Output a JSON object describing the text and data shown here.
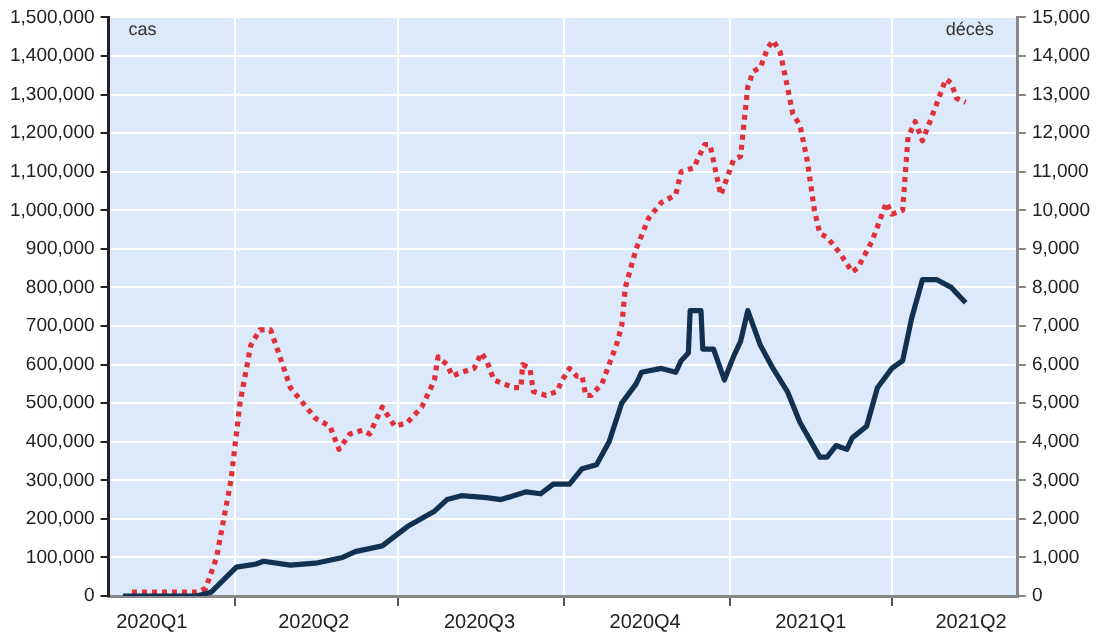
{
  "chart_data": {
    "type": "line",
    "ylabel": "cas",
    "y2label": "décès",
    "xlim": [
      "2020-01-22",
      "2021-06-10"
    ],
    "xticks": [
      {
        "value": "2020-02-15",
        "label": "2020Q1"
      },
      {
        "value": "2020-04-01",
        "label": null
      },
      {
        "value": "2020-05-15",
        "label": "2020Q2"
      },
      {
        "value": "2020-07-01",
        "label": null
      },
      {
        "value": "2020-08-15",
        "label": "2020Q3"
      },
      {
        "value": "2020-10-01",
        "label": null
      },
      {
        "value": "2020-11-15",
        "label": "2020Q4"
      },
      {
        "value": "2021-01-01",
        "label": null
      },
      {
        "value": "2021-02-15",
        "label": "2021Q1"
      },
      {
        "value": "2021-04-01",
        "label": null
      },
      {
        "value": "2021-05-15",
        "label": "2021Q2"
      }
    ],
    "ylim": [
      0,
      1500000
    ],
    "yticks": [
      0,
      {
        "value": 100000,
        "label": "100,000"
      },
      {
        "value": 200000,
        "label": "200,000"
      },
      {
        "value": 300000,
        "label": "300,000"
      },
      {
        "value": 400000,
        "label": "400,000"
      },
      {
        "value": 500000,
        "label": "500,000"
      },
      {
        "value": 600000,
        "label": "600,000"
      },
      {
        "value": 700000,
        "label": "700,000"
      },
      {
        "value": 800000,
        "label": "800,000"
      },
      {
        "value": 900000,
        "label": "900,000"
      },
      {
        "value": 1000000,
        "label": "1,000,000"
      },
      {
        "value": 1100000,
        "label": "1,100,000"
      },
      {
        "value": 1200000,
        "label": "1,200,000"
      },
      {
        "value": 1300000,
        "label": "1,300,000"
      },
      {
        "value": 1400000,
        "label": "1,400,000"
      },
      {
        "value": 1500000,
        "label": "1,500,000"
      }
    ],
    "y2lim": [
      0,
      15000
    ],
    "y2ticks": [
      0,
      {
        "value": 1000,
        "label": "1,000"
      },
      {
        "value": 2000,
        "label": "2,000"
      },
      {
        "value": 3000,
        "label": "3,000"
      },
      {
        "value": 4000,
        "label": "4,000"
      },
      {
        "value": 5000,
        "label": "5,000"
      },
      {
        "value": 6000,
        "label": "6,000"
      },
      {
        "value": 7000,
        "label": "7,000"
      },
      {
        "value": 8000,
        "label": "8,000"
      },
      {
        "value": 9000,
        "label": "9,000"
      },
      {
        "value": 10000,
        "label": "10,000"
      },
      {
        "value": 11000,
        "label": "11,000"
      },
      {
        "value": 12000,
        "label": "12,000"
      },
      {
        "value": 13000,
        "label": "13,000"
      },
      {
        "value": 14000,
        "label": "14,000"
      },
      {
        "value": 15000,
        "label": "15,000"
      }
    ],
    "grid": true,
    "legend": false,
    "marker": "none",
    "series": [
      {
        "color": "#12304f",
        "line_style": "solid",
        "x": [
          "2020-01-30",
          "2020-03-11",
          "2020-03-19",
          "2020-04-02",
          "2020-04-13",
          "2020-04-17",
          "2020-05-02",
          "2020-05-16",
          "2020-05-31",
          "2020-06-07",
          "2020-06-22",
          "2020-07-06",
          "2020-07-21",
          "2020-07-28",
          "2020-08-05",
          "2020-08-19",
          "2020-08-27",
          "2020-09-10",
          "2020-09-18",
          "2020-09-25",
          "2020-10-04",
          "2020-10-11",
          "2020-10-19",
          "2020-10-26",
          "2020-11-02",
          "2020-11-10",
          "2020-11-13",
          "2020-11-24",
          "2020-12-02",
          "2020-12-05",
          "2020-12-09",
          "2020-12-10",
          "2020-12-16",
          "2020-12-17",
          "2020-12-23",
          "2020-12-29",
          "2021-01-03",
          "2021-01-07",
          "2021-01-11",
          "2021-01-18",
          "2021-01-25",
          "2021-02-02",
          "2021-02-09",
          "2021-02-20",
          "2021-02-24",
          "2021-03-01",
          "2021-03-07",
          "2021-03-10",
          "2021-03-18",
          "2021-03-24",
          "2021-04-01",
          "2021-04-07",
          "2021-04-12",
          "2021-04-18",
          "2021-04-26",
          "2021-05-04",
          "2021-05-12"
        ],
        "values": [
          0,
          0,
          10000,
          75000,
          83000,
          90000,
          80000,
          85000,
          100000,
          115000,
          130000,
          180000,
          220000,
          250000,
          260000,
          255000,
          250000,
          270000,
          265000,
          290000,
          290000,
          330000,
          340000,
          400000,
          500000,
          550000,
          580000,
          590000,
          580000,
          610000,
          630000,
          740000,
          740000,
          640000,
          640000,
          560000,
          620000,
          660000,
          740000,
          650000,
          590000,
          530000,
          450000,
          360000,
          360000,
          390000,
          380000,
          410000,
          440000,
          540000,
          590000,
          610000,
          720000,
          820000,
          820000,
          800000,
          760000
        ]
      },
      {
        "color": "#e0303a",
        "line_style": "dotted",
        "axis": "y2",
        "x": [
          "2020-02-04",
          "2020-03-11",
          "2020-03-16",
          "2020-03-22",
          "2020-03-30",
          "2020-04-04",
          "2020-04-10",
          "2020-04-15",
          "2020-04-21",
          "2020-04-24",
          "2020-05-02",
          "2020-05-09",
          "2020-05-16",
          "2020-05-24",
          "2020-05-29",
          "2020-06-04",
          "2020-06-11",
          "2020-06-15",
          "2020-06-22",
          "2020-06-29",
          "2020-07-06",
          "2020-07-14",
          "2020-07-21",
          "2020-07-23",
          "2020-07-28",
          "2020-07-31",
          "2020-08-05",
          "2020-08-12",
          "2020-08-16",
          "2020-08-19",
          "2020-08-23",
          "2020-09-03",
          "2020-09-07",
          "2020-09-08",
          "2020-09-12",
          "2020-09-14",
          "2020-09-21",
          "2020-09-27",
          "2020-09-30",
          "2020-10-04",
          "2020-10-08",
          "2020-10-11",
          "2020-10-13",
          "2020-10-16",
          "2020-10-22",
          "2020-10-30",
          "2020-11-02",
          "2020-11-04",
          "2020-11-10",
          "2020-11-17",
          "2020-11-24",
          "2020-12-02",
          "2020-12-05",
          "2020-12-12",
          "2020-12-18",
          "2020-12-21",
          "2020-12-27",
          "2020-12-31",
          "2021-01-03",
          "2021-01-07",
          "2021-01-11",
          "2021-01-14",
          "2021-01-18",
          "2021-01-22",
          "2021-01-25",
          "2021-01-29",
          "2021-02-02",
          "2021-02-05",
          "2021-02-09",
          "2021-02-13",
          "2021-02-17",
          "2021-02-20",
          "2021-02-24",
          "2021-03-03",
          "2021-03-10",
          "2021-03-13",
          "2021-03-21",
          "2021-03-29",
          "2021-04-01",
          "2021-04-07",
          "2021-04-10",
          "2021-04-14",
          "2021-04-18",
          "2021-04-23",
          "2021-05-01",
          "2021-05-04",
          "2021-05-07",
          "2021-05-12"
        ],
        "values": [
          100,
          100,
          200,
          1000,
          3000,
          5000,
          6500,
          6900,
          6900,
          6500,
          5400,
          5000,
          4600,
          4400,
          3800,
          4200,
          4300,
          4200,
          4900,
          4400,
          4500,
          4900,
          5600,
          6200,
          6000,
          5700,
          5800,
          5900,
          6300,
          6100,
          5600,
          5400,
          5400,
          6000,
          5900,
          5300,
          5200,
          5300,
          5600,
          5900,
          5700,
          5700,
          5200,
          5200,
          5500,
          6500,
          7000,
          8000,
          9000,
          9800,
          10200,
          10400,
          11000,
          11100,
          11700,
          11700,
          10400,
          10900,
          11300,
          11400,
          13200,
          13600,
          13700,
          14200,
          14400,
          14100,
          13200,
          12500,
          12200,
          11300,
          10000,
          9400,
          9300,
          8900,
          8400,
          8500,
          9200,
          10200,
          9900,
          10000,
          11900,
          12300,
          11800,
          12400,
          13400,
          13300,
          12900,
          12800
        ]
      }
    ]
  }
}
